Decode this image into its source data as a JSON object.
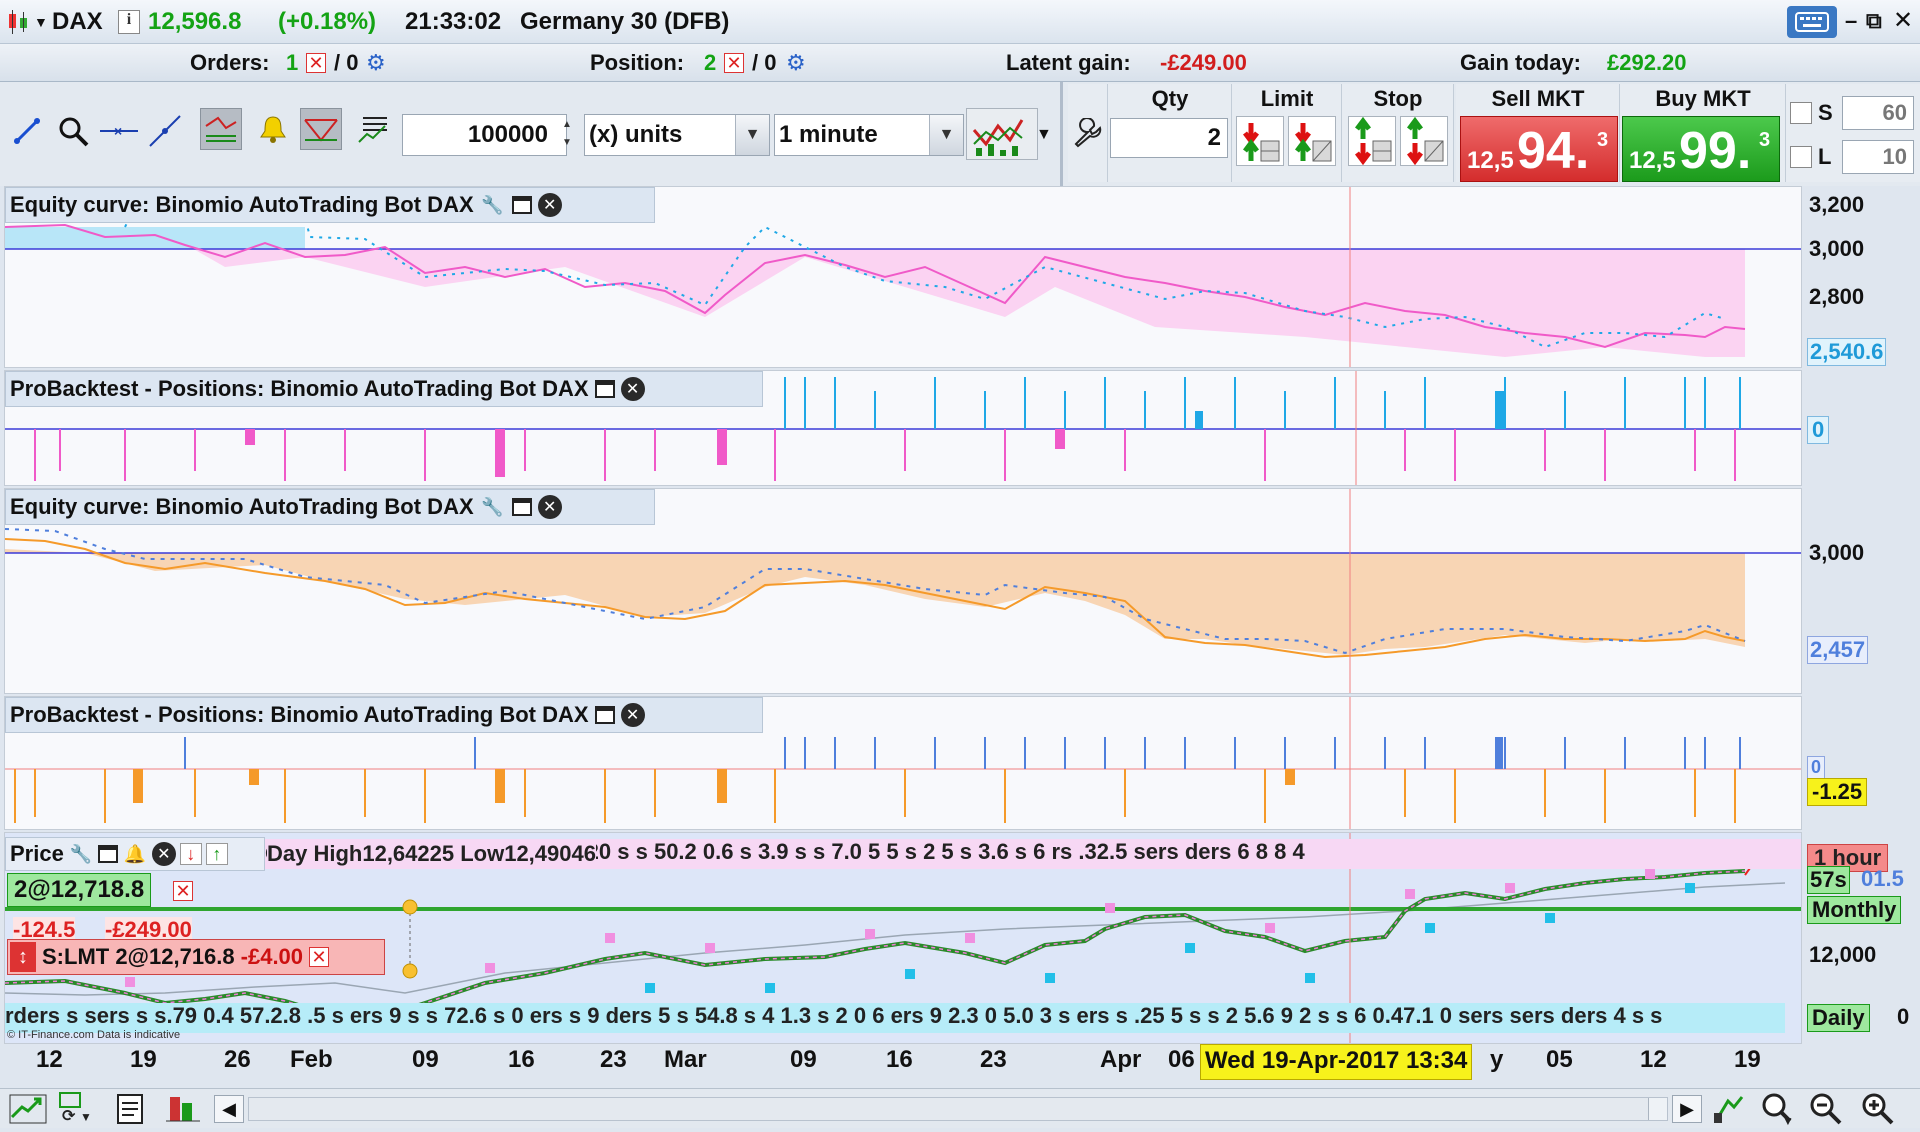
{
  "header": {
    "symbol": "DAX",
    "price": "12,596.8",
    "change": "(+0.18%)",
    "time": "21:33:02",
    "instrument": "Germany 30 (DFB)"
  },
  "status": {
    "orders_label": "Orders:",
    "orders_count": "1",
    "orders_sep": "/ 0",
    "position_label": "Position:",
    "position_count": "2",
    "position_sep": "/ 0",
    "latent_label": "Latent gain:",
    "latent_value": "-£249.00",
    "gain_label": "Gain today:",
    "gain_value": "£292.20"
  },
  "toolbar": {
    "quantity": "100000",
    "units": "(x) units",
    "timeframe": "1 minute"
  },
  "order_ticket": {
    "qty_label": "Qty",
    "qty_value": "2",
    "limit_label": "Limit",
    "stop_label": "Stop",
    "sell_label": "Sell MKT",
    "sell_prefix": "12,5",
    "sell_big": "94.",
    "sell_sup": "3",
    "buy_label": "Buy MKT",
    "buy_prefix": "12,5",
    "buy_big": "99.",
    "buy_sup": "3",
    "s_label": "S",
    "s_value": "60",
    "l_label": "L",
    "l_value": "10"
  },
  "panes": {
    "p1": {
      "title": "Equity curve: Binomio AutoTrading Bot DAX",
      "ticks": [
        "3,200",
        "3,000",
        "2,800"
      ],
      "last": "2,540.6"
    },
    "p2": {
      "title": "ProBacktest - Positions: Binomio AutoTrading Bot DAX",
      "zero": "0"
    },
    "p3": {
      "title": "Equity curve: Binomio AutoTrading Bot DAX",
      "ticks": [
        "3,000"
      ],
      "last": "2,457"
    },
    "p4": {
      "title": "ProBacktest - Positions: Binomio AutoTrading Bot DAX",
      "zero": "0",
      "last": "-1.25"
    },
    "p5": {
      "title": "Price",
      "overlay": "Day High12,64225 Low12,49046",
      "strip_top": "ders s 2.2 05.6 .2 13.2 6.9 0.5 2 20 s s 50.2 0.6 s 3.9 s s 7.0 5 5 s 2 5 s 3.6 s 6 rs .32.5 sers ders 6 8 8 4",
      "strip_bottom": "rders s sers s s.79 0.4 57.2.8 .5 s ers 9 s s 72.6 s 0 ers s 9 ders 5 s 54.8 s 4 1.3 s 2 0 6 ers 9 2.3 0 5.0 3 s ers s .25 5 s s 2 5.6 9 2 s s 6 0.47.1 0 sers sers ders 4 s s",
      "pos_label": "2@12,718.8",
      "pos_pl1": "-124.5",
      "pos_pl2": "-£249.00",
      "order_label": "S:LMT 2@12,716.8",
      "order_pl": "-£4.00",
      "tf_label": "1 hour",
      "countdown": "57s",
      "countdown_price": "01.5",
      "monthly": "Monthly",
      "tick12000": "12,000",
      "daily": "Daily",
      "zero_right": "0",
      "copyright": "© IT-Finance.com  Data is indicative"
    }
  },
  "xaxis": {
    "labels": [
      "12",
      "19",
      "26",
      "Feb",
      "09",
      "16",
      "23",
      "Mar",
      "09",
      "16",
      "23",
      "Apr",
      "06",
      "y",
      "05",
      "12",
      "19"
    ],
    "cursor_date": "Wed 19-Apr-2017 13:34"
  }
}
